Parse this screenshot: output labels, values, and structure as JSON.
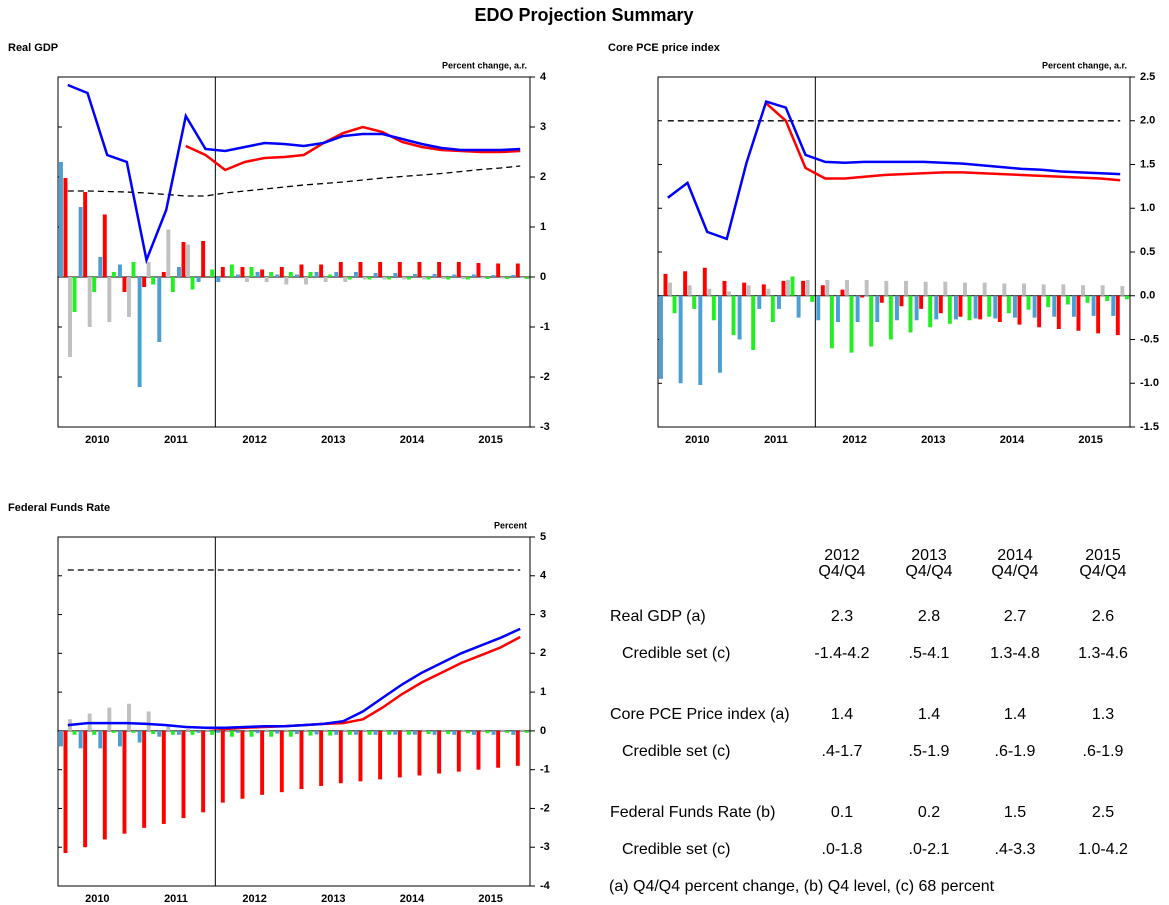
{
  "title": "EDO Projection Summary",
  "chart_data": [
    {
      "type": "combo",
      "title": "Real GDP",
      "axis_label": "Percent change, a.r.",
      "x": [
        2010.125,
        2010.375,
        2010.625,
        2010.875,
        2011.125,
        2011.375,
        2011.625,
        2011.875,
        2012.125,
        2012.375,
        2012.625,
        2012.875,
        2013.125,
        2013.375,
        2013.625,
        2013.875,
        2014.125,
        2014.375,
        2014.625,
        2014.875,
        2015.125,
        2015.375,
        2015.625,
        2015.875
      ],
      "xlim": [
        2010,
        2016
      ],
      "xticks": [
        {
          "value": 2010.5,
          "label": "2010"
        },
        {
          "value": 2011.5,
          "label": "2011"
        },
        {
          "value": 2012.5,
          "label": "2012"
        },
        {
          "value": 2013.5,
          "label": "2013"
        },
        {
          "value": 2014.5,
          "label": "2014"
        },
        {
          "value": 2015.5,
          "label": "2015"
        }
      ],
      "ylim": [
        -3,
        4
      ],
      "yticks": [
        -3,
        -2,
        -1,
        0,
        1,
        2,
        3,
        4
      ],
      "vline": 2012,
      "series": [
        {
          "type": "bar",
          "color": "#4a9fd4",
          "values": [
            2.3,
            1.4,
            0.4,
            0.25,
            -2.2,
            -1.3,
            0.2,
            -0.1,
            -0.1,
            0.05,
            0.1,
            0.05,
            0.05,
            0.1,
            0.1,
            0.1,
            0.08,
            0.08,
            0.06,
            0.06,
            0.05,
            0.05,
            0.04,
            0.04
          ]
        },
        {
          "type": "bar",
          "color": "#ff0000",
          "values": [
            1.98,
            1.7,
            1.25,
            -0.3,
            -0.2,
            0.1,
            0.7,
            0.72,
            0.2,
            0.2,
            0.15,
            0.2,
            0.25,
            0.25,
            0.3,
            0.3,
            0.3,
            0.3,
            0.3,
            0.3,
            0.3,
            0.28,
            0.27,
            0.27
          ]
        },
        {
          "type": "bar",
          "color": "#c0c0c0",
          "values": [
            -1.6,
            -1.0,
            -0.9,
            -0.8,
            0.3,
            0.95,
            0.65,
            0.0,
            0.0,
            -0.1,
            -0.1,
            -0.15,
            -0.15,
            -0.1,
            -0.1,
            -0.05,
            -0.05,
            -0.05,
            -0.05,
            -0.04,
            -0.04,
            -0.03,
            -0.03,
            -0.02
          ]
        },
        {
          "type": "bar",
          "color": "#22ee22",
          "values": [
            -0.7,
            -0.3,
            0.1,
            0.3,
            -0.15,
            -0.3,
            -0.25,
            0.15,
            0.25,
            0.2,
            0.1,
            0.1,
            0.1,
            0.05,
            -0.05,
            -0.05,
            -0.05,
            -0.05,
            -0.05,
            -0.05,
            -0.05,
            -0.04,
            -0.04,
            -0.04
          ]
        },
        {
          "type": "line",
          "style": "dashed",
          "color": "#000000",
          "values": [
            1.72,
            1.72,
            1.71,
            1.7,
            1.68,
            1.65,
            1.62,
            1.62,
            1.68,
            1.72,
            1.76,
            1.8,
            1.84,
            1.87,
            1.9,
            1.94,
            1.98,
            2.01,
            2.04,
            2.07,
            2.11,
            2.15,
            2.18,
            2.22
          ]
        },
        {
          "type": "line",
          "style": "solid",
          "color": "#ff0000",
          "values": [
            null,
            null,
            null,
            null,
            null,
            null,
            2.62,
            2.44,
            2.14,
            2.3,
            2.38,
            2.4,
            2.44,
            2.68,
            2.88,
            3.0,
            2.9,
            2.7,
            2.6,
            2.54,
            2.52,
            2.5,
            2.5,
            2.52
          ]
        },
        {
          "type": "line",
          "style": "solid",
          "color": "#0000ff",
          "values": [
            3.84,
            3.68,
            2.44,
            2.3,
            0.34,
            1.34,
            3.22,
            2.56,
            2.52,
            2.6,
            2.68,
            2.66,
            2.62,
            2.68,
            2.82,
            2.86,
            2.86,
            2.76,
            2.66,
            2.58,
            2.54,
            2.54,
            2.54,
            2.56
          ]
        }
      ]
    },
    {
      "type": "combo",
      "title": "Core PCE price index",
      "axis_label": "Percent change, a.r.",
      "x": [
        2010.125,
        2010.375,
        2010.625,
        2010.875,
        2011.125,
        2011.375,
        2011.625,
        2011.875,
        2012.125,
        2012.375,
        2012.625,
        2012.875,
        2013.125,
        2013.375,
        2013.625,
        2013.875,
        2014.125,
        2014.375,
        2014.625,
        2014.875,
        2015.125,
        2015.375,
        2015.625,
        2015.875
      ],
      "xlim": [
        2010,
        2016
      ],
      "xticks": [
        {
          "value": 2010.5,
          "label": "2010"
        },
        {
          "value": 2011.5,
          "label": "2011"
        },
        {
          "value": 2012.5,
          "label": "2012"
        },
        {
          "value": 2013.5,
          "label": "2013"
        },
        {
          "value": 2014.5,
          "label": "2014"
        },
        {
          "value": 2015.5,
          "label": "2015"
        }
      ],
      "ylim": [
        -1.5,
        2.5
      ],
      "yticks": [
        -1.5,
        {
          "value": -1,
          "label": "-1.0"
        },
        -0.5,
        {
          "value": 0,
          "label": "0.0"
        },
        0.5,
        {
          "value": 1,
          "label": "1.0"
        },
        1.5,
        {
          "value": 2,
          "label": "2.0"
        },
        2.5
      ],
      "vline": 2012,
      "series": [
        {
          "type": "bar",
          "color": "#4a9fd4",
          "values": [
            -0.95,
            -1.0,
            -1.02,
            -0.88,
            -0.5,
            -0.15,
            -0.15,
            -0.25,
            -0.28,
            -0.3,
            -0.3,
            -0.3,
            -0.28,
            -0.28,
            -0.27,
            -0.27,
            -0.26,
            -0.26,
            -0.25,
            -0.25,
            -0.24,
            -0.24,
            -0.23,
            -0.23
          ]
        },
        {
          "type": "bar",
          "color": "#ff0000",
          "values": [
            0.25,
            0.28,
            0.32,
            0.17,
            0.15,
            0.13,
            0.17,
            0.17,
            0.12,
            0.07,
            -0.02,
            -0.08,
            -0.12,
            -0.15,
            -0.2,
            -0.24,
            -0.27,
            -0.3,
            -0.33,
            -0.36,
            -0.38,
            -0.4,
            -0.43,
            -0.45
          ]
        },
        {
          "type": "bar",
          "color": "#c0c0c0",
          "values": [
            0.15,
            0.12,
            0.08,
            0.05,
            0.12,
            0.08,
            0.18,
            0.18,
            0.18,
            0.18,
            0.18,
            0.17,
            0.17,
            0.16,
            0.16,
            0.15,
            0.15,
            0.14,
            0.14,
            0.13,
            0.13,
            0.12,
            0.12,
            0.11
          ]
        },
        {
          "type": "bar",
          "color": "#22ee22",
          "values": [
            -0.2,
            -0.15,
            -0.28,
            -0.45,
            -0.62,
            -0.3,
            0.22,
            -0.07,
            -0.6,
            -0.65,
            -0.58,
            -0.5,
            -0.42,
            -0.36,
            -0.32,
            -0.28,
            -0.24,
            -0.2,
            -0.16,
            -0.13,
            -0.1,
            -0.08,
            -0.06,
            -0.04
          ]
        },
        {
          "type": "line",
          "style": "dashed",
          "color": "#000000",
          "values": [
            2,
            2,
            2,
            2,
            2,
            2,
            2,
            2,
            2,
            2,
            2,
            2,
            2,
            2,
            2,
            2,
            2,
            2,
            2,
            2,
            2,
            2,
            2,
            2
          ]
        },
        {
          "type": "line",
          "style": "solid",
          "color": "#ff0000",
          "values": [
            null,
            null,
            null,
            null,
            null,
            2.2,
            2.0,
            1.46,
            1.34,
            1.34,
            1.36,
            1.38,
            1.39,
            1.4,
            1.41,
            1.41,
            1.4,
            1.39,
            1.38,
            1.37,
            1.36,
            1.35,
            1.34,
            1.32
          ]
        },
        {
          "type": "line",
          "style": "solid",
          "color": "#0000ff",
          "values": [
            1.12,
            1.29,
            0.73,
            0.65,
            1.52,
            2.22,
            2.15,
            1.61,
            1.53,
            1.52,
            1.53,
            1.53,
            1.53,
            1.53,
            1.52,
            1.51,
            1.49,
            1.47,
            1.45,
            1.44,
            1.42,
            1.41,
            1.4,
            1.39
          ]
        }
      ]
    },
    {
      "type": "combo",
      "title": "Federal Funds Rate",
      "axis_label": "Percent",
      "x": [
        2010.125,
        2010.375,
        2010.625,
        2010.875,
        2011.125,
        2011.375,
        2011.625,
        2011.875,
        2012.125,
        2012.375,
        2012.625,
        2012.875,
        2013.125,
        2013.375,
        2013.625,
        2013.875,
        2014.125,
        2014.375,
        2014.625,
        2014.875,
        2015.125,
        2015.375,
        2015.625,
        2015.875
      ],
      "xlim": [
        2010,
        2016
      ],
      "xticks": [
        {
          "value": 2010.5,
          "label": "2010"
        },
        {
          "value": 2011.5,
          "label": "2011"
        },
        {
          "value": 2012.5,
          "label": "2012"
        },
        {
          "value": 2013.5,
          "label": "2013"
        },
        {
          "value": 2014.5,
          "label": "2014"
        },
        {
          "value": 2015.5,
          "label": "2015"
        }
      ],
      "ylim": [
        -4,
        5
      ],
      "yticks": [
        -4,
        -3,
        -2,
        -1,
        0,
        1,
        2,
        3,
        4,
        5
      ],
      "vline": 2012,
      "series": [
        {
          "type": "bar",
          "color": "#4a9fd4",
          "values": [
            -0.4,
            -0.45,
            -0.45,
            -0.4,
            -0.3,
            -0.15,
            -0.1,
            -0.05,
            -0.05,
            -0.05,
            -0.06,
            -0.07,
            -0.08,
            -0.09,
            -0.1,
            -0.1,
            -0.1,
            -0.1,
            -0.1,
            -0.1,
            -0.1,
            -0.1,
            -0.1,
            -0.1
          ]
        },
        {
          "type": "bar",
          "color": "#ff0000",
          "values": [
            -3.15,
            -3.0,
            -2.8,
            -2.65,
            -2.5,
            -2.4,
            -2.25,
            -2.1,
            -1.85,
            -1.75,
            -1.65,
            -1.58,
            -1.5,
            -1.42,
            -1.35,
            -1.3,
            -1.25,
            -1.2,
            -1.15,
            -1.1,
            -1.05,
            -1.0,
            -0.95,
            -0.9
          ]
        },
        {
          "type": "bar",
          "color": "#c0c0c0",
          "values": [
            0.3,
            0.45,
            0.6,
            0.7,
            0.5,
            0.15,
            0.05,
            0.03,
            0.03,
            0.03,
            0.03,
            0.03,
            0.03,
            0.03,
            0.03,
            0.03,
            0.03,
            0.03,
            0.03,
            0.03,
            0.03,
            0.03,
            0.03,
            0.03
          ]
        },
        {
          "type": "bar",
          "color": "#22ee22",
          "values": [
            -0.1,
            -0.1,
            -0.05,
            -0.05,
            -0.08,
            -0.1,
            -0.1,
            -0.1,
            -0.15,
            -0.15,
            -0.15,
            -0.15,
            -0.12,
            -0.12,
            -0.1,
            -0.1,
            -0.1,
            -0.1,
            -0.08,
            -0.08,
            -0.06,
            -0.06,
            -0.05,
            -0.05
          ]
        },
        {
          "type": "line",
          "style": "dashed",
          "color": "#000000",
          "values": [
            4.15,
            4.15,
            4.15,
            4.15,
            4.15,
            4.15,
            4.15,
            4.15,
            4.15,
            4.15,
            4.15,
            4.15,
            4.15,
            4.15,
            4.15,
            4.15,
            4.15,
            4.15,
            4.15,
            4.15,
            4.15,
            4.15,
            4.15,
            4.15
          ]
        },
        {
          "type": "line",
          "style": "solid",
          "color": "#ff0000",
          "values": [
            null,
            null,
            null,
            null,
            null,
            null,
            null,
            0.08,
            0.05,
            0.08,
            0.1,
            0.12,
            0.15,
            0.18,
            0.2,
            0.3,
            0.6,
            0.95,
            1.25,
            1.5,
            1.75,
            1.95,
            2.15,
            2.42
          ]
        },
        {
          "type": "line",
          "style": "solid",
          "color": "#0000ff",
          "values": [
            0.15,
            0.2,
            0.2,
            0.2,
            0.18,
            0.15,
            0.1,
            0.08,
            0.08,
            0.1,
            0.12,
            0.12,
            0.15,
            0.18,
            0.25,
            0.5,
            0.85,
            1.2,
            1.5,
            1.75,
            2.0,
            2.2,
            2.4,
            2.63
          ]
        }
      ]
    }
  ],
  "table": {
    "columns": [
      {
        "year": "2012",
        "period": "Q4/Q4"
      },
      {
        "year": "2013",
        "period": "Q4/Q4"
      },
      {
        "year": "2014",
        "period": "Q4/Q4"
      },
      {
        "year": "2015",
        "period": "Q4/Q4"
      }
    ],
    "rows": [
      {
        "label": "Real GDP (a)",
        "values": [
          "2.3",
          "2.8",
          "2.7",
          "2.6"
        ]
      },
      {
        "label": "Credible set (c)",
        "values": [
          "-1.4-4.2",
          ".5-4.1",
          "1.3-4.8",
          "1.3-4.6"
        ]
      },
      {
        "label": "Core PCE Price index (a)",
        "values": [
          "1.4",
          "1.4",
          "1.4",
          "1.3"
        ]
      },
      {
        "label": "Credible set (c)",
        "values": [
          ".4-1.7",
          ".5-1.9",
          ".6-1.9",
          ".6-1.9"
        ]
      },
      {
        "label": "Federal Funds Rate (b)",
        "values": [
          "0.1",
          "0.2",
          "1.5",
          "2.5"
        ]
      },
      {
        "label": "Credible set (c)",
        "values": [
          ".0-1.8",
          ".0-2.1",
          ".4-3.3",
          "1.0-4.2"
        ]
      }
    ],
    "footnote": "(a) Q4/Q4 percent change, (b) Q4 level, (c) 68 percent"
  }
}
